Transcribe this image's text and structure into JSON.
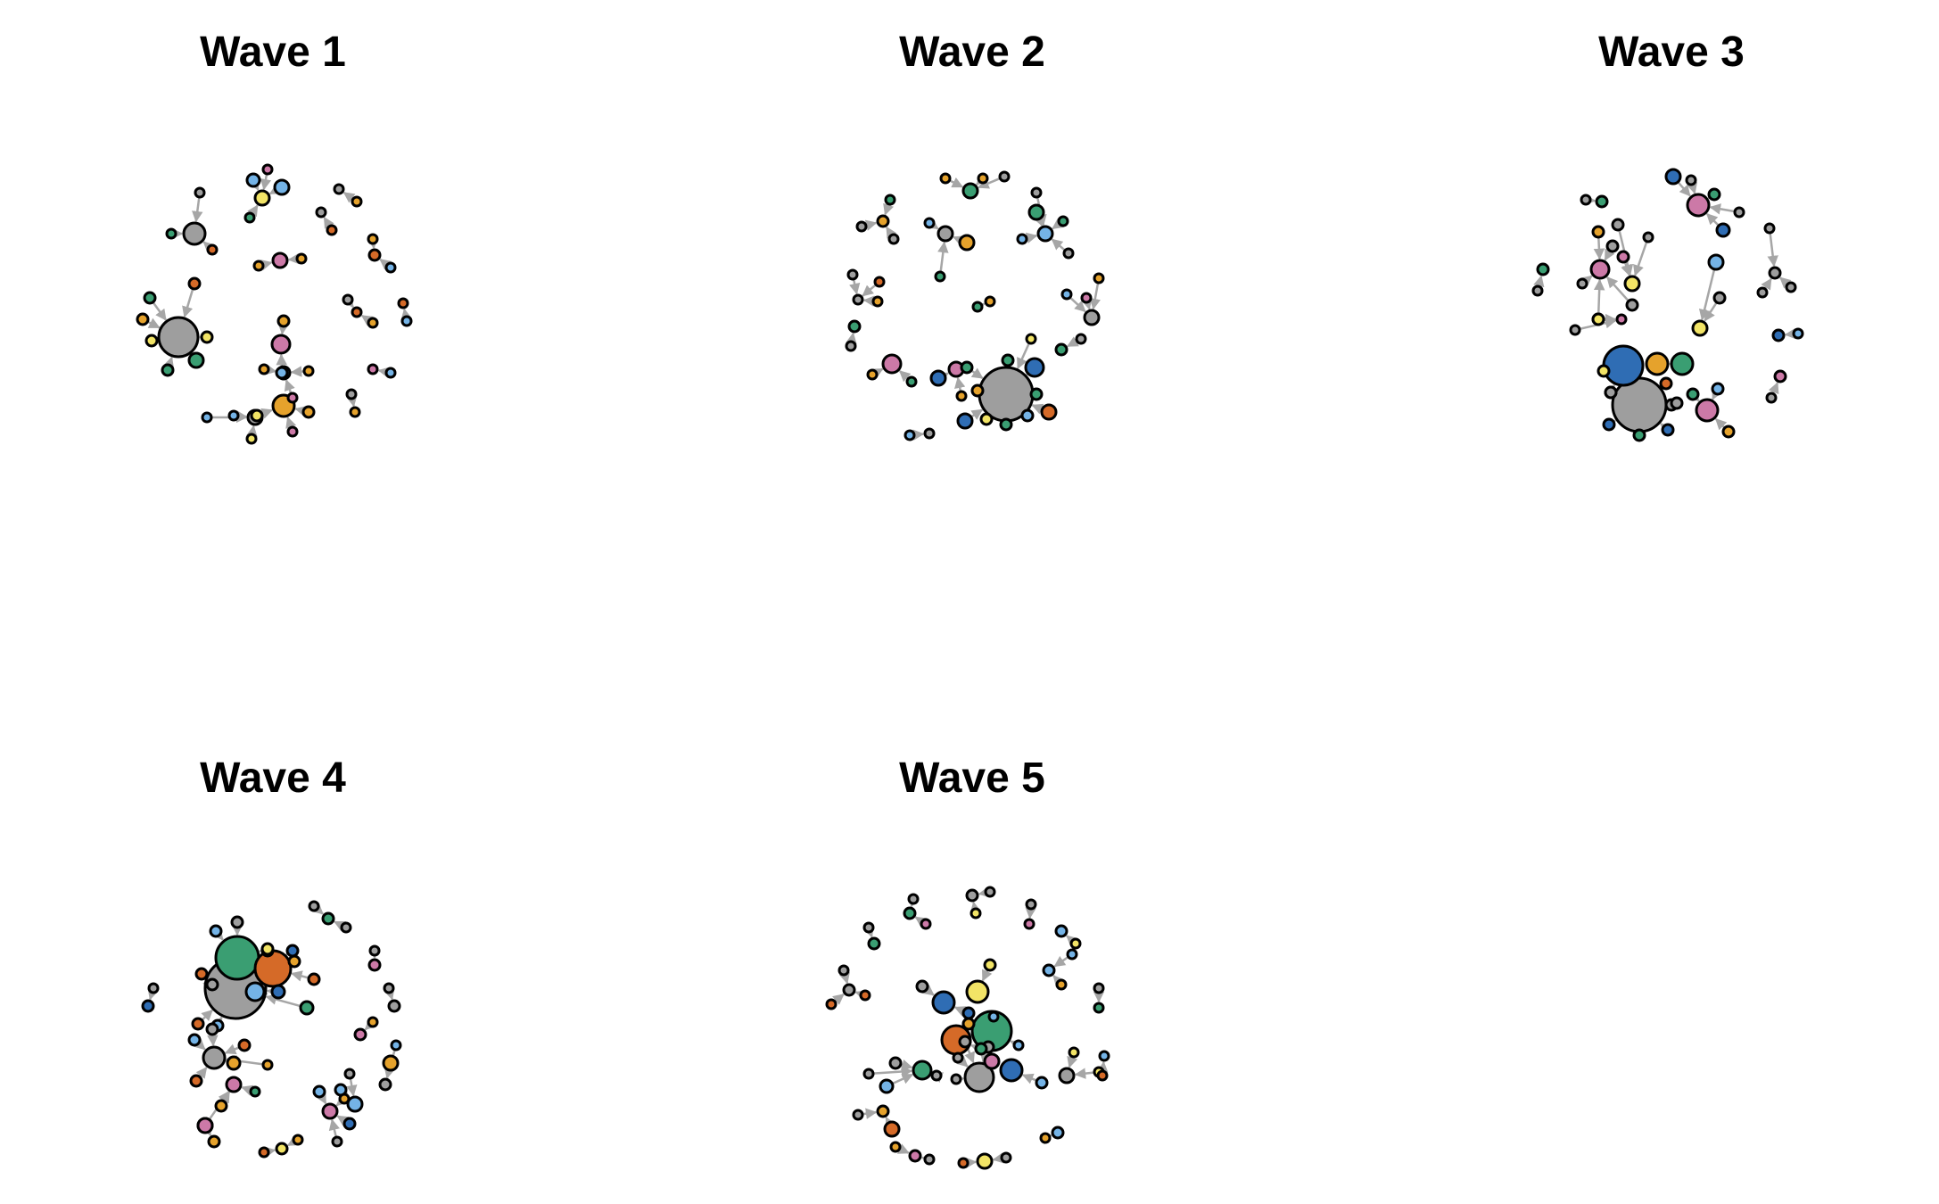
{
  "figure": {
    "panels": [
      {
        "title": "Wave 1"
      },
      {
        "title": "Wave 2"
      },
      {
        "title": "Wave 3"
      },
      {
        "title": "Wave 4"
      },
      {
        "title": "Wave 5"
      }
    ]
  },
  "palette": {
    "grey": "#9e9e9e",
    "blue": "#2f6db4",
    "lightblue": "#74b3e6",
    "green": "#3a9e72",
    "orange": "#d56a28",
    "yellow": "#f2e466",
    "pink": "#cc79a7",
    "gold": "#e5a22c",
    "edge": "#a6a6a6"
  }
}
